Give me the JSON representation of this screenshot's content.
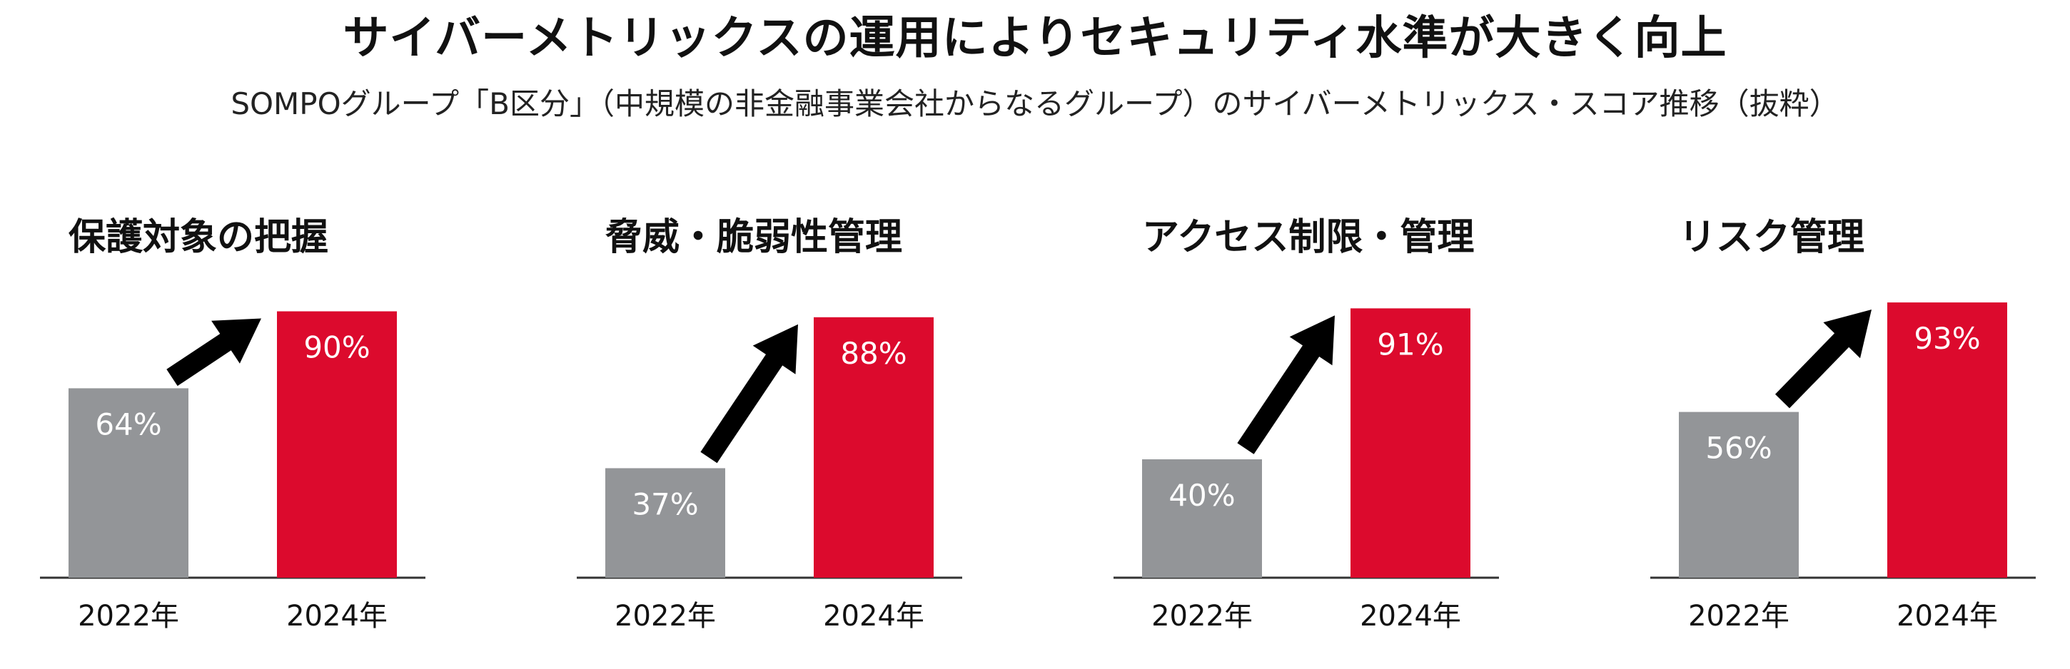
{
  "title": "サイバーメトリックスの運用によりセキュリティ水準が大きく向上",
  "subtitle": "SOMPOグループ「B区分」（中規模の非金融事業会社からなるグループ）のサイバーメトリックス・スコア推移（抜粋）",
  "colors": {
    "prior": "#939598",
    "current": "#DC0A2D",
    "arrow": "#000000",
    "axis": "#333333"
  },
  "chart_data": [
    {
      "type": "bar",
      "title": "保護対象の把握",
      "categories": [
        "2022年",
        "2024年"
      ],
      "values": [
        64,
        90
      ],
      "value_labels": [
        "64%",
        "90%"
      ]
    },
    {
      "type": "bar",
      "title": "脅威・脆弱性管理",
      "categories": [
        "2022年",
        "2024年"
      ],
      "values": [
        37,
        88
      ],
      "value_labels": [
        "37%",
        "88%"
      ]
    },
    {
      "type": "bar",
      "title": "アクセス制限・管理",
      "categories": [
        "2022年",
        "2024年"
      ],
      "values": [
        40,
        91
      ],
      "value_labels": [
        "40%",
        "91%"
      ]
    },
    {
      "type": "bar",
      "title": "リスク管理",
      "categories": [
        "2022年",
        "2024年"
      ],
      "values": [
        56,
        93
      ],
      "value_labels": [
        "56%",
        "93%"
      ]
    }
  ]
}
